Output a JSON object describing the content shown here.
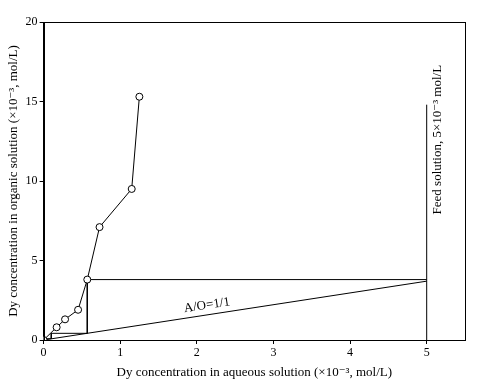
{
  "chart_data": {
    "type": "scatter",
    "x_label": "Dy concentration in aqueous solution (×10⁻³, mol/L)",
    "y_label": "Dy concentration in organic solution (×10⁻³, mol/L)",
    "xlim": [
      0,
      5.5
    ],
    "xticks": [
      0,
      1,
      2,
      3,
      4,
      5
    ],
    "ylim": [
      0,
      20
    ],
    "yticks": [
      0,
      5,
      10,
      15,
      20
    ],
    "grid": false,
    "series": [
      {
        "color": "#000000",
        "marker": "circle",
        "line_style": "solid",
        "x": [
          0,
          0.17,
          0.28,
          0.45,
          0.57,
          0.73,
          1.15,
          1.25
        ],
        "values": [
          0,
          0.8,
          1.3,
          1.9,
          3.8,
          7.1,
          9.5,
          15.3
        ]
      },
      {
        "name": "A/O=1/1",
        "color": "#000000",
        "marker": "none",
        "line_style": "solid",
        "x": [
          0,
          5
        ],
        "values": [
          0,
          3.7
        ]
      },
      {
        "color": "#000000",
        "marker": "none",
        "line_style": "solid",
        "x": [
          5,
          0.57,
          0.57,
          0.1,
          0.1,
          0.03,
          0.03
        ],
        "values": [
          3.8,
          3.8,
          0.42,
          0.42,
          0.08,
          0.08,
          0.02
        ]
      },
      {
        "name": "Feed solution, 5×10⁻³ mol/L",
        "color": "#000000",
        "marker": "none",
        "line_style": "solid",
        "x": [
          5,
          5
        ],
        "values": [
          0,
          14.8
        ]
      }
    ]
  }
}
